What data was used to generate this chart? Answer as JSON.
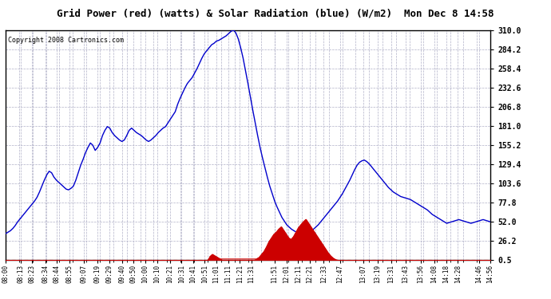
{
  "title": "Grid Power (red) (watts) & Solar Radiation (blue) (W/m2)  Mon Dec 8 14:58",
  "copyright_text": "Copyright 2008 Cartronics.com",
  "y_min": 0.5,
  "y_max": 310.0,
  "y_ticks": [
    0.5,
    26.2,
    52.0,
    77.8,
    103.6,
    129.4,
    155.2,
    181.0,
    206.8,
    232.6,
    258.4,
    284.2,
    310.0
  ],
  "x_labels": [
    "08:00",
    "08:13",
    "08:23",
    "08:34",
    "08:44",
    "08:55",
    "09:07",
    "09:19",
    "09:29",
    "09:40",
    "09:50",
    "10:00",
    "10:10",
    "10:21",
    "10:31",
    "10:41",
    "10:51",
    "11:01",
    "11:11",
    "11:21",
    "11:31",
    "11:51",
    "12:01",
    "12:11",
    "12:21",
    "12:33",
    "12:47",
    "13:07",
    "13:19",
    "13:31",
    "13:43",
    "13:56",
    "14:08",
    "14:18",
    "14:28",
    "14:46",
    "14:56"
  ],
  "blue_color": "#0000cc",
  "red_color": "#cc0000",
  "grid_color": "#b0b0c8",
  "bg_color": "#ffffff",
  "border_color": "#000000",
  "blue_y": [
    36,
    38,
    40,
    43,
    47,
    52,
    56,
    60,
    64,
    68,
    72,
    76,
    80,
    85,
    92,
    100,
    108,
    115,
    120,
    118,
    112,
    108,
    105,
    102,
    99,
    96,
    95,
    97,
    100,
    108,
    118,
    128,
    136,
    145,
    152,
    158,
    155,
    148,
    152,
    158,
    168,
    175,
    180,
    178,
    172,
    168,
    165,
    162,
    160,
    162,
    168,
    175,
    178,
    175,
    172,
    170,
    168,
    165,
    162,
    160,
    162,
    165,
    168,
    172,
    175,
    178,
    180,
    185,
    190,
    195,
    200,
    210,
    218,
    225,
    232,
    238,
    242,
    246,
    252,
    258,
    265,
    272,
    278,
    282,
    286,
    290,
    292,
    295,
    296,
    298,
    300,
    302,
    305,
    308,
    310,
    306,
    298,
    286,
    272,
    255,
    238,
    220,
    202,
    185,
    168,
    152,
    138,
    125,
    112,
    100,
    90,
    80,
    72,
    65,
    58,
    53,
    48,
    45,
    42,
    40,
    38,
    37,
    36,
    36,
    37,
    38,
    40,
    42,
    45,
    48,
    52,
    56,
    60,
    64,
    68,
    72,
    76,
    80,
    85,
    90,
    96,
    102,
    108,
    115,
    122,
    128,
    132,
    134,
    135,
    133,
    130,
    126,
    122,
    118,
    114,
    110,
    106,
    102,
    98,
    95,
    92,
    90,
    88,
    86,
    85,
    84,
    83,
    82,
    80,
    78,
    76,
    74,
    72,
    70,
    68,
    65,
    62,
    60,
    58,
    56,
    54,
    52,
    50,
    51,
    52,
    53,
    54,
    55,
    54,
    53,
    52,
    51,
    50,
    51,
    52,
    53,
    54,
    55,
    54,
    53,
    52
  ],
  "red_y": [
    0,
    0,
    0,
    0,
    0,
    0,
    0,
    0,
    0,
    0,
    0,
    0,
    0,
    0,
    0,
    0,
    0,
    0,
    0,
    0,
    0,
    0,
    0,
    0,
    0,
    0,
    0,
    0,
    0,
    0,
    0,
    0,
    0,
    0,
    0,
    0,
    0,
    0,
    0,
    0,
    0,
    0,
    0,
    0,
    0,
    0,
    0,
    0,
    0,
    0,
    0,
    0,
    0,
    0,
    0,
    0,
    0,
    0,
    0,
    0,
    0,
    0,
    0,
    0,
    0,
    0,
    0,
    0,
    0,
    0,
    0,
    0,
    0,
    0,
    0,
    0,
    0,
    0,
    0,
    0,
    0,
    0,
    0,
    5,
    8,
    6,
    4,
    2,
    0,
    0,
    0,
    0,
    0,
    0,
    0,
    0,
    0,
    0,
    0,
    0,
    0,
    0,
    2,
    4,
    8,
    12,
    18,
    25,
    30,
    35,
    38,
    42,
    45,
    40,
    35,
    30,
    28,
    32,
    38,
    44,
    48,
    52,
    55,
    50,
    45,
    40,
    35,
    30,
    25,
    20,
    15,
    10,
    6,
    3,
    1,
    0,
    0,
    0,
    0,
    0,
    0,
    0,
    0,
    0,
    0,
    0,
    0,
    0,
    0,
    0,
    0,
    0,
    0,
    0,
    0,
    0,
    0,
    0,
    0,
    0,
    0,
    0,
    0,
    0,
    0,
    0,
    0,
    0,
    0,
    0,
    0,
    0,
    0,
    0,
    0,
    0,
    0,
    0,
    0,
    0,
    0,
    0,
    0,
    0,
    0,
    0,
    0,
    0,
    0,
    0,
    0,
    0,
    0,
    0,
    0,
    0,
    0,
    0
  ]
}
